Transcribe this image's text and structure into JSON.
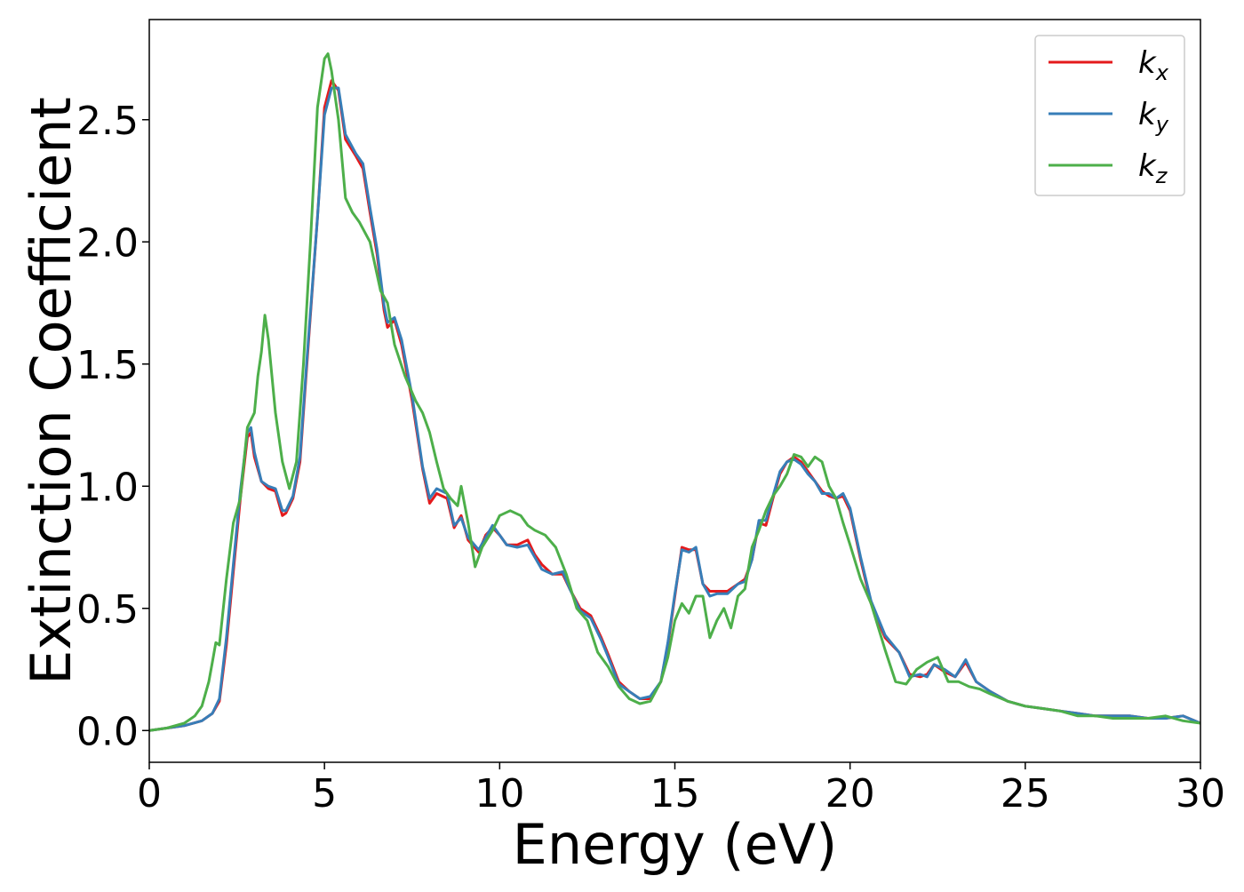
{
  "chart_data": {
    "type": "line",
    "xlabel": "Energy (eV)",
    "ylabel": "Extinction Coefficient",
    "xlim": [
      0,
      30
    ],
    "ylim": [
      -0.13,
      2.91
    ],
    "xticks": [
      0,
      5,
      10,
      15,
      20,
      25,
      30
    ],
    "xtick_labels": [
      "0",
      "5",
      "10",
      "15",
      "20",
      "25",
      "30"
    ],
    "yticks": [
      0.0,
      0.5,
      1.0,
      1.5,
      2.0,
      2.5
    ],
    "ytick_labels": [
      "0.0",
      "0.5",
      "1.0",
      "1.5",
      "2.0",
      "2.5"
    ],
    "grid": false,
    "legend_position": "top-right",
    "series": [
      {
        "name": "k_x",
        "label_main": "k",
        "label_sub": "x",
        "color": "#e41a1c",
        "x": [
          0,
          0.5,
          1.0,
          1.5,
          1.8,
          2.0,
          2.2,
          2.4,
          2.6,
          2.8,
          2.9,
          3.0,
          3.2,
          3.4,
          3.6,
          3.8,
          3.9,
          4.1,
          4.3,
          4.5,
          4.8,
          5.0,
          5.2,
          5.4,
          5.6,
          5.9,
          6.1,
          6.3,
          6.5,
          6.7,
          6.8,
          7.0,
          7.2,
          7.5,
          7.8,
          8.0,
          8.2,
          8.5,
          8.7,
          8.9,
          9.1,
          9.4,
          9.6,
          9.8,
          10.0,
          10.2,
          10.5,
          10.8,
          11.0,
          11.2,
          11.5,
          11.8,
          12.0,
          12.3,
          12.6,
          12.9,
          13.1,
          13.4,
          13.7,
          14.0,
          14.3,
          14.6,
          14.8,
          15.0,
          15.2,
          15.4,
          15.6,
          15.8,
          16.0,
          16.2,
          16.5,
          16.8,
          17.0,
          17.2,
          17.4,
          17.6,
          17.8,
          18.0,
          18.2,
          18.4,
          18.6,
          18.8,
          19.0,
          19.2,
          19.4,
          19.6,
          19.8,
          20.0,
          20.3,
          20.6,
          21.0,
          21.4,
          21.7,
          22.0,
          22.2,
          22.4,
          22.7,
          23.0,
          23.3,
          23.6,
          24.0,
          24.5,
          25.0,
          25.5,
          26.0,
          26.5,
          27.0,
          27.5,
          28.0,
          28.5,
          29.0,
          29.5,
          30.0
        ],
        "y": [
          0.0,
          0.01,
          0.02,
          0.04,
          0.07,
          0.12,
          0.35,
          0.65,
          0.95,
          1.2,
          1.22,
          1.12,
          1.02,
          0.99,
          0.98,
          0.88,
          0.89,
          0.95,
          1.1,
          1.5,
          2.1,
          2.55,
          2.66,
          2.62,
          2.42,
          2.35,
          2.3,
          2.12,
          1.95,
          1.72,
          1.65,
          1.68,
          1.58,
          1.35,
          1.07,
          0.93,
          0.97,
          0.95,
          0.83,
          0.88,
          0.78,
          0.73,
          0.8,
          0.83,
          0.8,
          0.76,
          0.76,
          0.78,
          0.72,
          0.68,
          0.64,
          0.64,
          0.58,
          0.5,
          0.47,
          0.38,
          0.31,
          0.2,
          0.16,
          0.13,
          0.13,
          0.2,
          0.35,
          0.55,
          0.75,
          0.74,
          0.74,
          0.6,
          0.57,
          0.57,
          0.57,
          0.6,
          0.62,
          0.7,
          0.85,
          0.84,
          0.95,
          1.05,
          1.1,
          1.12,
          1.1,
          1.06,
          1.02,
          0.98,
          0.96,
          0.95,
          0.96,
          0.9,
          0.7,
          0.52,
          0.38,
          0.32,
          0.23,
          0.22,
          0.23,
          0.27,
          0.24,
          0.22,
          0.28,
          0.2,
          0.16,
          0.12,
          0.1,
          0.09,
          0.08,
          0.07,
          0.06,
          0.06,
          0.06,
          0.05,
          0.05,
          0.06,
          0.03
        ]
      },
      {
        "name": "k_y",
        "label_main": "k",
        "label_sub": "y",
        "color": "#377eb8",
        "x": [
          0,
          0.5,
          1.0,
          1.5,
          1.8,
          2.0,
          2.2,
          2.4,
          2.6,
          2.8,
          2.9,
          3.0,
          3.2,
          3.4,
          3.6,
          3.8,
          3.9,
          4.1,
          4.3,
          4.5,
          4.8,
          5.0,
          5.2,
          5.4,
          5.6,
          5.9,
          6.1,
          6.3,
          6.5,
          6.7,
          6.8,
          7.0,
          7.2,
          7.5,
          7.8,
          8.0,
          8.2,
          8.5,
          8.7,
          8.9,
          9.1,
          9.4,
          9.6,
          9.8,
          10.0,
          10.2,
          10.5,
          10.8,
          11.0,
          11.2,
          11.5,
          11.8,
          12.0,
          12.3,
          12.6,
          12.9,
          13.1,
          13.4,
          13.7,
          14.0,
          14.3,
          14.6,
          14.8,
          15.0,
          15.2,
          15.4,
          15.6,
          15.8,
          16.0,
          16.2,
          16.5,
          16.8,
          17.0,
          17.2,
          17.4,
          17.6,
          17.8,
          18.0,
          18.2,
          18.4,
          18.6,
          18.8,
          19.0,
          19.2,
          19.4,
          19.6,
          19.8,
          20.0,
          20.3,
          20.6,
          21.0,
          21.4,
          21.7,
          22.0,
          22.2,
          22.4,
          22.7,
          23.0,
          23.3,
          23.6,
          24.0,
          24.5,
          25.0,
          25.5,
          26.0,
          26.5,
          27.0,
          27.5,
          28.0,
          28.5,
          29.0,
          29.5,
          30.0
        ],
        "y": [
          0.0,
          0.01,
          0.02,
          0.04,
          0.07,
          0.13,
          0.38,
          0.68,
          0.98,
          1.22,
          1.24,
          1.14,
          1.02,
          1.0,
          0.99,
          0.9,
          0.9,
          0.96,
          1.12,
          1.52,
          2.1,
          2.52,
          2.63,
          2.63,
          2.44,
          2.36,
          2.32,
          2.14,
          1.97,
          1.74,
          1.67,
          1.69,
          1.6,
          1.37,
          1.08,
          0.95,
          0.99,
          0.97,
          0.84,
          0.87,
          0.79,
          0.74,
          0.79,
          0.84,
          0.8,
          0.76,
          0.75,
          0.76,
          0.71,
          0.66,
          0.64,
          0.65,
          0.58,
          0.49,
          0.46,
          0.37,
          0.3,
          0.19,
          0.16,
          0.13,
          0.14,
          0.2,
          0.36,
          0.56,
          0.74,
          0.73,
          0.75,
          0.6,
          0.55,
          0.56,
          0.56,
          0.6,
          0.61,
          0.7,
          0.86,
          0.86,
          0.96,
          1.06,
          1.1,
          1.11,
          1.09,
          1.05,
          1.02,
          0.97,
          0.97,
          0.95,
          0.97,
          0.91,
          0.71,
          0.53,
          0.39,
          0.32,
          0.22,
          0.23,
          0.22,
          0.27,
          0.25,
          0.22,
          0.29,
          0.2,
          0.16,
          0.12,
          0.1,
          0.09,
          0.08,
          0.07,
          0.06,
          0.06,
          0.06,
          0.05,
          0.05,
          0.06,
          0.03
        ]
      },
      {
        "name": "k_z",
        "label_main": "k",
        "label_sub": "z",
        "color": "#4daf4a",
        "x": [
          0,
          0.5,
          1.0,
          1.3,
          1.5,
          1.7,
          1.8,
          1.9,
          2.0,
          2.2,
          2.4,
          2.6,
          2.8,
          3.0,
          3.1,
          3.2,
          3.3,
          3.4,
          3.6,
          3.8,
          4.0,
          4.2,
          4.4,
          4.6,
          4.8,
          5.0,
          5.1,
          5.2,
          5.4,
          5.6,
          5.8,
          6.0,
          6.3,
          6.6,
          6.8,
          7.0,
          7.3,
          7.6,
          7.8,
          8.0,
          8.2,
          8.4,
          8.6,
          8.8,
          8.9,
          9.1,
          9.3,
          9.5,
          9.8,
          10.0,
          10.3,
          10.6,
          10.8,
          11.0,
          11.3,
          11.6,
          11.9,
          12.2,
          12.5,
          12.8,
          13.1,
          13.4,
          13.7,
          14.0,
          14.3,
          14.6,
          14.8,
          15.0,
          15.2,
          15.4,
          15.6,
          15.8,
          16.0,
          16.2,
          16.4,
          16.6,
          16.8,
          17.0,
          17.2,
          17.4,
          17.6,
          17.8,
          18.0,
          18.2,
          18.4,
          18.6,
          18.8,
          19.0,
          19.2,
          19.4,
          19.6,
          19.8,
          20.0,
          20.3,
          20.6,
          21.0,
          21.3,
          21.6,
          21.9,
          22.2,
          22.5,
          22.8,
          23.1,
          23.4,
          23.7,
          24.0,
          24.5,
          25.0,
          25.5,
          26.0,
          26.5,
          27.0,
          27.5,
          28.0,
          28.5,
          29.0,
          29.5,
          30.0
        ],
        "y": [
          0.0,
          0.01,
          0.03,
          0.06,
          0.1,
          0.2,
          0.28,
          0.36,
          0.35,
          0.62,
          0.85,
          0.95,
          1.24,
          1.3,
          1.45,
          1.55,
          1.7,
          1.6,
          1.3,
          1.1,
          0.99,
          1.1,
          1.5,
          2.0,
          2.55,
          2.75,
          2.77,
          2.7,
          2.5,
          2.18,
          2.12,
          2.08,
          2.0,
          1.8,
          1.75,
          1.58,
          1.45,
          1.35,
          1.3,
          1.22,
          1.1,
          0.99,
          0.95,
          0.92,
          1.0,
          0.85,
          0.67,
          0.75,
          0.82,
          0.88,
          0.9,
          0.88,
          0.84,
          0.82,
          0.8,
          0.75,
          0.64,
          0.5,
          0.45,
          0.32,
          0.26,
          0.18,
          0.13,
          0.11,
          0.12,
          0.2,
          0.3,
          0.45,
          0.52,
          0.48,
          0.55,
          0.55,
          0.38,
          0.45,
          0.5,
          0.42,
          0.55,
          0.58,
          0.75,
          0.82,
          0.9,
          0.96,
          1.0,
          1.05,
          1.13,
          1.12,
          1.08,
          1.12,
          1.1,
          1.0,
          0.95,
          0.85,
          0.76,
          0.62,
          0.52,
          0.33,
          0.2,
          0.19,
          0.25,
          0.28,
          0.3,
          0.2,
          0.2,
          0.18,
          0.17,
          0.15,
          0.12,
          0.1,
          0.09,
          0.08,
          0.06,
          0.06,
          0.05,
          0.05,
          0.05,
          0.06,
          0.04,
          0.03
        ]
      }
    ]
  }
}
